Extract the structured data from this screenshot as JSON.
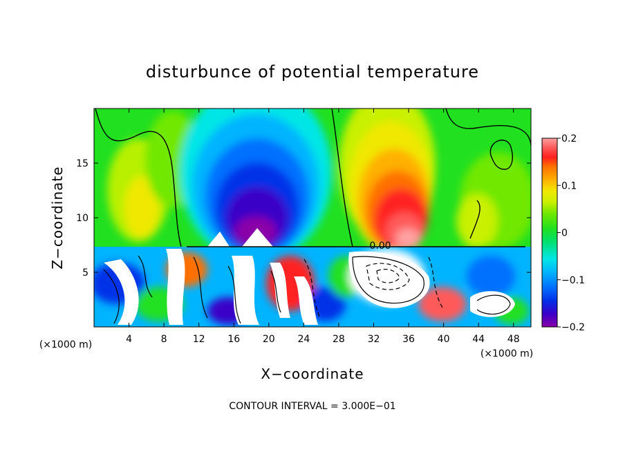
{
  "chart_data": {
    "type": "heatmap",
    "title": "disturbunce of potential temperature",
    "xlabel": "X−coordinate",
    "ylabel": "Z−coordinate",
    "x_unit": "(×1000 m)",
    "x_ticks": [
      4,
      8,
      12,
      16,
      20,
      24,
      28,
      32,
      36,
      40,
      44,
      48
    ],
    "y_ticks": [
      5,
      10,
      15
    ],
    "xlim": [
      0,
      50
    ],
    "ylim": [
      0,
      20
    ],
    "colorbar": {
      "ticks": [
        "0.2",
        "0.1",
        "0",
        "−0.1",
        "−0.2"
      ],
      "tick_values": [
        0.2,
        0.1,
        0,
        -0.1,
        -0.2
      ],
      "range": [
        -0.2,
        0.2
      ],
      "colors": [
        "#8a00a8",
        "#3a00c8",
        "#0030e8",
        "#0070ff",
        "#00b4ff",
        "#00e6e6",
        "#00e070",
        "#20e020",
        "#70e800",
        "#c8f000",
        "#f0e800",
        "#ffb000",
        "#ff7000",
        "#ff2020",
        "#ff5a5a",
        "#ffa0a0"
      ]
    },
    "contour_label": "0.00",
    "annotation": "CONTOUR INTERVAL = 3.000E−01"
  }
}
